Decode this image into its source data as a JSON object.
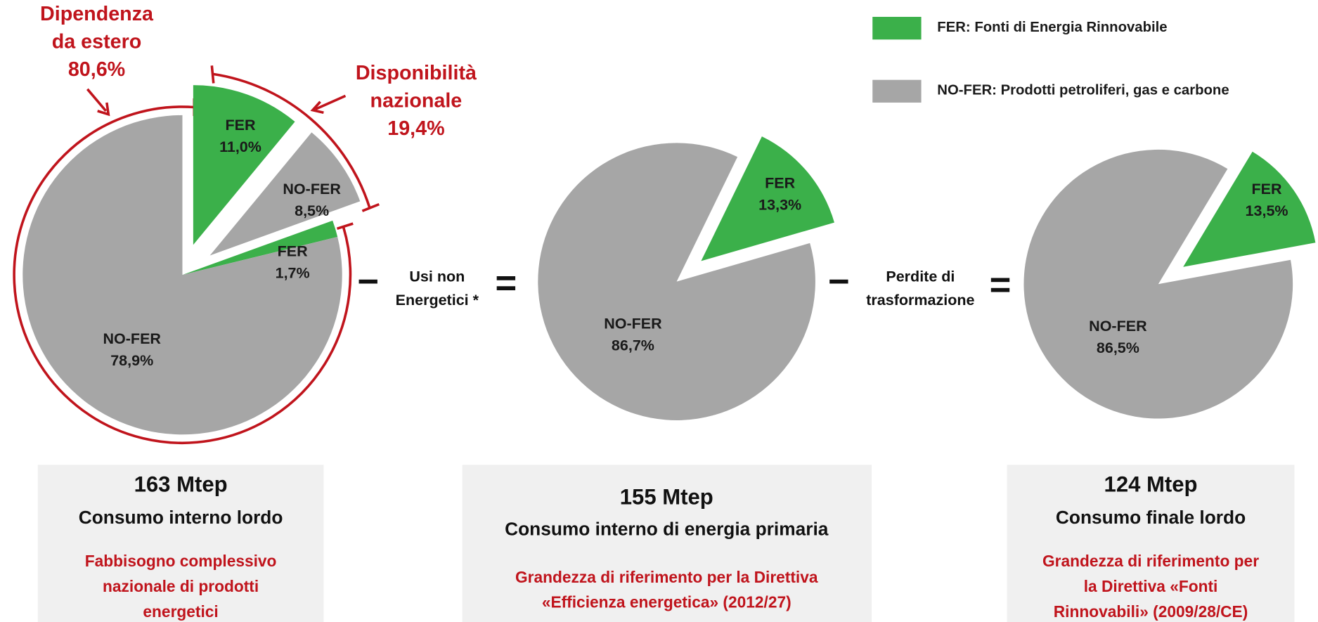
{
  "legend": [
    {
      "label": "FER: Fonti di Energia Rinnovabile",
      "color": "#3bb04a"
    },
    {
      "label": "NO-FER: Prodotti petroliferi, gas e carbone",
      "color": "#a6a6a6"
    }
  ],
  "chart_data": [
    {
      "type": "pie",
      "categories": [
        "FER",
        "NO-FER",
        "FER",
        "NO-FER"
      ],
      "values": [
        11.0,
        8.5,
        1.7,
        78.9
      ],
      "value_labels": [
        "11,0%",
        "8,5%",
        "1,7%",
        "78,9%"
      ],
      "colors": [
        "#3bb04a",
        "#a6a6a6",
        "#3bb04a",
        "#a6a6a6"
      ]
    },
    {
      "type": "pie",
      "categories": [
        "FER",
        "NO-FER"
      ],
      "values": [
        13.3,
        86.7
      ],
      "value_labels": [
        "13,3%",
        "86,7%"
      ],
      "colors": [
        "#3bb04a",
        "#a6a6a6"
      ]
    },
    {
      "type": "pie",
      "categories": [
        "FER",
        "NO-FER"
      ],
      "values": [
        13.5,
        86.5
      ],
      "value_labels": [
        "13,5%",
        "86,5%"
      ],
      "colors": [
        "#3bb04a",
        "#a6a6a6"
      ]
    }
  ],
  "annotations": [
    {
      "lines": [
        "Dipendenza",
        "da estero",
        "80,6%"
      ]
    },
    {
      "lines": [
        "Disponibilità",
        "nazionale",
        "19,4%"
      ]
    }
  ],
  "operators": [
    {
      "symbol": "−"
    },
    {
      "lines": [
        "Usi non",
        "Energetici *"
      ]
    },
    {
      "symbol": "="
    },
    {
      "symbol": "−"
    },
    {
      "lines": [
        "Perdite di",
        "trasformazione"
      ]
    },
    {
      "symbol": "="
    }
  ],
  "boxes": [
    {
      "total": "163 Mtep",
      "title": "Consumo interno lordo",
      "note": [
        "Fabbisogno complessivo",
        "nazionale di prodotti",
        "energetici"
      ]
    },
    {
      "total": "155 Mtep",
      "title": "Consumo interno di energia primaria",
      "note": [
        "Grandezza di riferimento per la Direttiva",
        "«Efficienza energetica» (2012/27)"
      ]
    },
    {
      "total": "124 Mtep",
      "title": "Consumo finale lordo",
      "note": [
        "Grandezza di riferimento per",
        "la Direttiva «Fonti",
        "Rinnovabili» (2009/28/CE)"
      ]
    }
  ]
}
